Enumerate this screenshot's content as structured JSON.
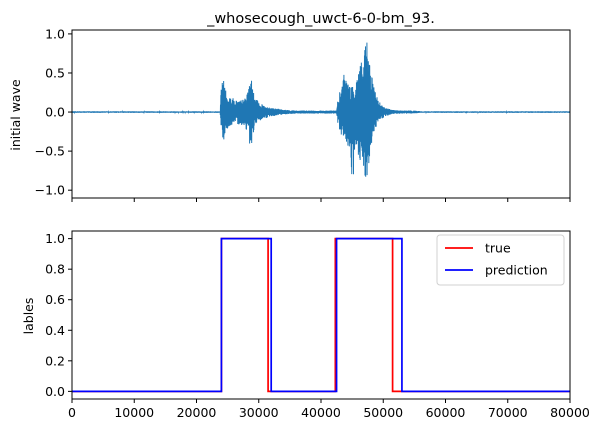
{
  "chart_data": [
    {
      "type": "line",
      "title": "_whosecough_uwct-6-0-bm_93.",
      "xlabel": "",
      "ylabel": "initial wave",
      "xlim": [
        0,
        80000
      ],
      "ylim": [
        -1.1,
        1.05
      ],
      "yticks": [
        "−1.0",
        "−0.5",
        "0.0",
        "0.5",
        "1.0"
      ],
      "ytick_values": [
        -1.0,
        -0.5,
        0.0,
        0.5,
        1.0
      ],
      "xticks": [
        0,
        10000,
        20000,
        30000,
        40000,
        50000,
        60000,
        70000,
        80000
      ],
      "show_xtick_labels": false,
      "grid": false,
      "color": "#1f77b4",
      "series": [
        {
          "envelope_x": [
            0,
            23800,
            24000,
            24300,
            24800,
            25500,
            26500,
            27500,
            28300,
            28700,
            29000,
            29500,
            30500,
            31500,
            32500,
            34000,
            36000,
            40000,
            42500,
            42800,
            43300,
            43800,
            44200,
            44600,
            45100,
            45600,
            46100,
            46500,
            46900,
            47200,
            47600,
            48000,
            48400,
            48800,
            49300,
            49900,
            50500,
            51500,
            53000,
            55000,
            56000,
            60000,
            70000,
            80000
          ],
          "envelope_max": [
            0.01,
            0.01,
            0.38,
            0.52,
            0.22,
            0.2,
            0.15,
            0.16,
            0.26,
            0.53,
            0.3,
            0.17,
            0.1,
            0.07,
            0.05,
            0.03,
            0.02,
            0.02,
            0.02,
            0.22,
            0.3,
            0.58,
            0.4,
            0.35,
            0.32,
            0.42,
            0.6,
            0.72,
            0.62,
            1.0,
            0.82,
            0.5,
            0.38,
            0.25,
            0.15,
            0.08,
            0.05,
            0.03,
            0.02,
            0.02,
            0.01,
            0.01,
            0.01,
            0.01
          ],
          "envelope_min": [
            -0.01,
            -0.01,
            -0.25,
            -0.38,
            -0.22,
            -0.18,
            -0.15,
            -0.18,
            -0.25,
            -0.55,
            -0.3,
            -0.17,
            -0.1,
            -0.07,
            -0.05,
            -0.03,
            -0.02,
            -0.02,
            -0.02,
            -0.2,
            -0.3,
            -0.35,
            -0.42,
            -0.6,
            -0.95,
            -0.5,
            -0.6,
            -0.75,
            -0.8,
            -0.98,
            -0.75,
            -0.5,
            -0.3,
            -0.2,
            -0.12,
            -0.08,
            -0.05,
            -0.03,
            -0.02,
            -0.02,
            -0.01,
            -0.01,
            -0.01,
            -0.01
          ]
        }
      ]
    },
    {
      "type": "line",
      "title": "",
      "xlabel": "",
      "ylabel": "lables",
      "xlim": [
        0,
        80000
      ],
      "ylim": [
        -0.05,
        1.05
      ],
      "yticks": [
        "0.0",
        "0.2",
        "0.4",
        "0.6",
        "0.8",
        "1.0"
      ],
      "ytick_values": [
        0.0,
        0.2,
        0.4,
        0.6,
        0.8,
        1.0
      ],
      "xticks": [
        "0",
        "10000",
        "20000",
        "30000",
        "40000",
        "50000",
        "60000",
        "70000",
        "80000"
      ],
      "xtick_values": [
        0,
        10000,
        20000,
        30000,
        40000,
        50000,
        60000,
        70000,
        80000
      ],
      "grid": false,
      "legend": "top-right",
      "series": [
        {
          "name": "true",
          "color": "#ff0000",
          "x": [
            0,
            24000,
            24000,
            31500,
            31500,
            42300,
            42300,
            51500,
            51500,
            80000
          ],
          "y": [
            0,
            0,
            1,
            1,
            0,
            0,
            1,
            1,
            0,
            0
          ]
        },
        {
          "name": "prediction",
          "color": "#0000ff",
          "x": [
            0,
            24000,
            24000,
            32000,
            32000,
            42500,
            42500,
            53000,
            53000,
            80000
          ],
          "y": [
            0,
            0,
            1,
            1,
            0,
            0,
            1,
            1,
            0,
            0
          ]
        }
      ]
    }
  ]
}
